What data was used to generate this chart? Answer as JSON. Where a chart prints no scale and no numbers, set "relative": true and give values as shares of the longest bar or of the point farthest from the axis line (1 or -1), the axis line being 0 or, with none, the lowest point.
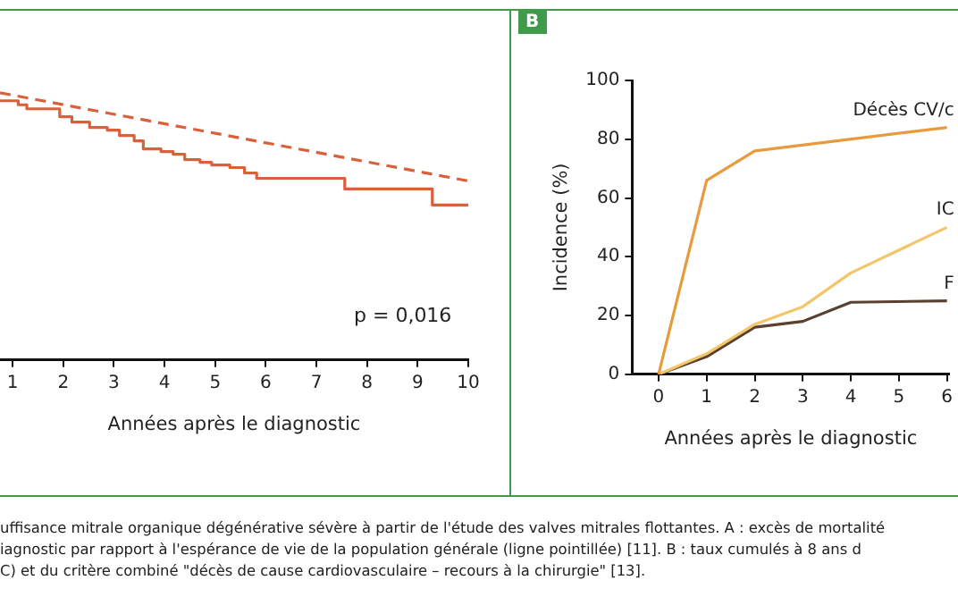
{
  "chart_data": [
    {
      "type": "step",
      "relative": true,
      "xlabel": "Années après le diagnostic",
      "xlim": [
        0.75,
        10
      ],
      "xticks": [
        1,
        2,
        3,
        4,
        5,
        6,
        7,
        8,
        9,
        10
      ],
      "grid": false,
      "legend": false,
      "tick_labels": "x",
      "series": [
        {
          "color": "#d9603a",
          "line_style": "solid",
          "x": [
            0.75,
            1.11,
            1.28,
            1.93,
            2.17,
            2.52,
            2.87,
            3.11,
            3.4,
            3.58,
            3.93,
            4.17,
            4.4,
            4.7,
            4.93,
            5.29,
            5.58,
            5.82,
            7.56,
            9.29,
            10
          ],
          "values": [
            0.97,
            0.955,
            0.94,
            0.91,
            0.89,
            0.87,
            0.86,
            0.84,
            0.82,
            0.79,
            0.78,
            0.77,
            0.75,
            0.74,
            0.73,
            0.72,
            0.7,
            0.68,
            0.64,
            0.58,
            0.58
          ]
        },
        {
          "type": "line",
          "color": "#d9603a",
          "line_style": "dashed",
          "x": [
            0.75,
            10
          ],
          "values": [
            1,
            0.67
          ]
        }
      ],
      "annotations": [
        "p = 0,016",
        "uffisance mitrale organique dégénérative sévère à partir de l'étude des valves mitrales flottantes. A : excès de mortalité",
        "iagnostic par rapport à l'espérance de vie de la population générale (ligne pointillée) [11]. B : taux cumulés à 8 ans d",
        "C) et du critère combiné \"décès de cause cardiovasculaire – recours à la chirurgie\" [13]."
      ]
    },
    {
      "type": "line",
      "title": "B",
      "xlabel": "Années après le diagnostic",
      "ylabel": "Incidence (%)",
      "xlim": [
        -0.55,
        6.05
      ],
      "xticks": [
        0,
        1,
        2,
        3,
        4,
        5,
        6
      ],
      "ylim": [
        0,
        100
      ],
      "yticks": [
        0,
        20,
        40,
        60,
        80,
        100
      ],
      "grid": false,
      "legend": false,
      "marker": "none",
      "series": [
        {
          "name": "Décès CV/c",
          "color": "#e89a3c",
          "x": [
            0,
            1,
            2,
            6
          ],
          "values": [
            0,
            66,
            76,
            84
          ]
        },
        {
          "name": "IC",
          "color": "#f2c66a",
          "x": [
            0,
            1,
            2,
            3,
            4,
            6
          ],
          "values": [
            0,
            7,
            17,
            23,
            34.5,
            50
          ]
        },
        {
          "name": "F",
          "color": "#5a4030",
          "x": [
            0,
            1,
            2,
            3,
            4,
            6
          ],
          "values": [
            0,
            6,
            16,
            18,
            24.5,
            25
          ]
        }
      ]
    }
  ]
}
